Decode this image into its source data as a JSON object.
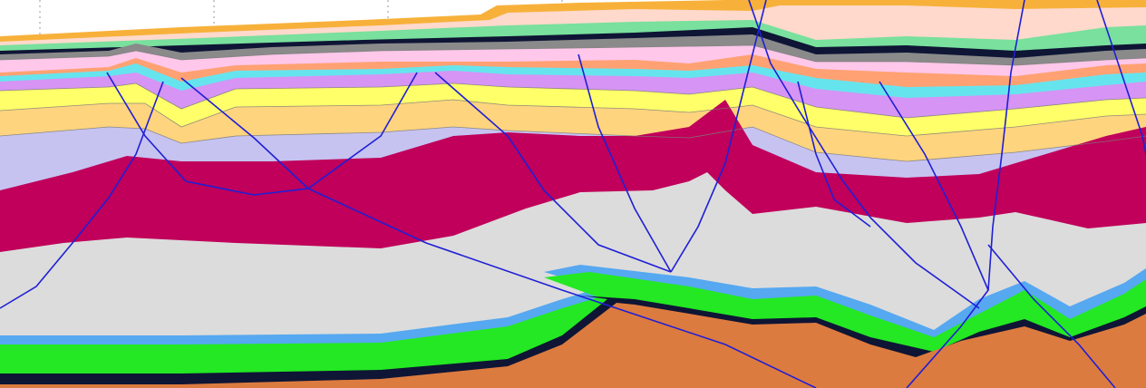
{
  "palette": {
    "ground_surface": "#f7b13a",
    "upper_band_1": "#ffd9cc",
    "upper_band_2": "#79e09d",
    "coal_black": "#0f1535",
    "carbonate_gray": "#8a8a8a",
    "pink_marl": "#ffc7ea",
    "orange_clay": "#ffa172",
    "cyan_sand": "#66e4ee",
    "violet_shale": "#d694f4",
    "yellow_sand": "#ffff6a",
    "pale_orange": "#ffd47e",
    "lavender": "#c6c3f1",
    "magenta_salt": "#c0005a",
    "light_gray_basin": "#dcdcdc",
    "blue_marker": "#56a8f0",
    "green_marker": "#23e823",
    "basement_orange": "#dc7b3f",
    "fault_blue": "#1f1fd6",
    "background": "#ffffff"
  },
  "layers": [
    "ground_surface",
    "upper_band_1",
    "upper_band_2",
    "coal_black",
    "carbonate_gray",
    "pink_marl",
    "orange_clay",
    "cyan_sand",
    "violet_shale",
    "yellow_sand",
    "pale_orange",
    "lavender",
    "magenta_salt",
    "light_gray_basin",
    "blue_marker",
    "green_marker",
    "basement_orange"
  ],
  "fault_count": 12,
  "vertical_gridlines": true
}
